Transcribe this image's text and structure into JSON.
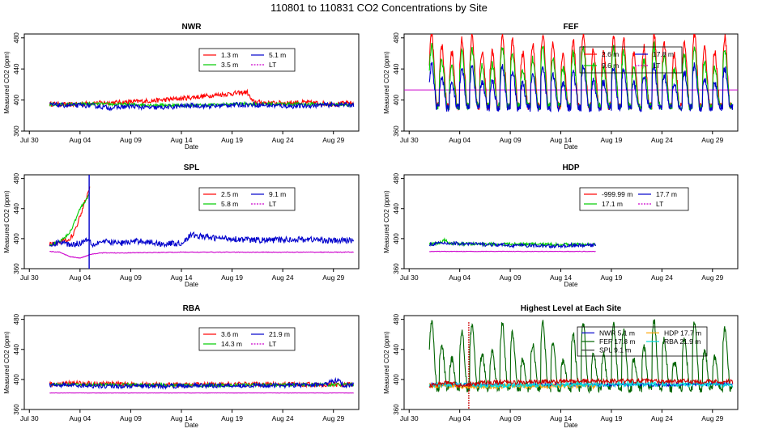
{
  "figure_title": "110801  to  110831 CO2 Concentrations by Site",
  "chart_data": [
    {
      "type": "line",
      "title": "NWR",
      "xlabel": "Date",
      "ylabel": "Measured CO2 (ppm)",
      "xlim": [
        -1.5,
        31.5
      ],
      "ylim": [
        360,
        485
      ],
      "x_ticks": [
        {
          "v": -1,
          "label": "Jul 30"
        },
        {
          "v": 4,
          "label": "Aug 04"
        },
        {
          "v": 9,
          "label": "Aug 09"
        },
        {
          "v": 14,
          "label": "Aug 14"
        },
        {
          "v": 19,
          "label": "Aug 19"
        },
        {
          "v": 24,
          "label": "Aug 24"
        },
        {
          "v": 29,
          "label": "Aug 29"
        }
      ],
      "y_ticks": [
        360,
        400,
        440,
        480
      ],
      "legend": [
        {
          "label": "1.3 m",
          "color": "#ff0000"
        },
        {
          "label": "5.1 m",
          "color": "#0000cc"
        },
        {
          "label": "3.5 m",
          "color": "#00cc00"
        },
        {
          "label": "LT",
          "color": "#cc00cc",
          "dashed": true
        }
      ],
      "series": [
        {
          "name": "1.3 m",
          "color": "#ff0000",
          "x": [
            1,
            3,
            5,
            8,
            11,
            14,
            17,
            20.5,
            21,
            23,
            26,
            29,
            31
          ],
          "y": [
            395,
            394,
            396,
            397,
            399,
            402,
            406,
            410,
            398,
            396,
            397,
            395,
            396
          ],
          "noise": 3
        },
        {
          "name": "3.5 m",
          "color": "#00cc00",
          "x": [
            1,
            5,
            10,
            15,
            20,
            25,
            31
          ],
          "y": [
            394,
            395,
            394,
            393,
            395,
            395,
            394
          ],
          "noise": 2
        },
        {
          "name": "5.1 m",
          "color": "#0000cc",
          "x": [
            1,
            3,
            5,
            7,
            9,
            11,
            13,
            15,
            17,
            19,
            21,
            23,
            25,
            27,
            29,
            31
          ],
          "y": [
            394,
            393,
            393,
            390,
            392,
            390,
            391,
            393,
            392,
            394,
            394,
            393,
            392,
            393,
            394,
            394
          ],
          "noise": 3
        }
      ]
    },
    {
      "type": "line",
      "title": "FEF",
      "xlabel": "Date",
      "ylabel": "Measured CO2 (ppm)",
      "xlim": [
        -1.5,
        31.5
      ],
      "ylim": [
        360,
        485
      ],
      "x_ticks": [
        {
          "v": -1,
          "label": "Jul 30"
        },
        {
          "v": 4,
          "label": "Aug 04"
        },
        {
          "v": 9,
          "label": "Aug 09"
        },
        {
          "v": 14,
          "label": "Aug 14"
        },
        {
          "v": 19,
          "label": "Aug 19"
        },
        {
          "v": 24,
          "label": "Aug 24"
        },
        {
          "v": 29,
          "label": "Aug 29"
        }
      ],
      "y_ticks": [
        360,
        400,
        440,
        480
      ],
      "legend": [
        {
          "label": "2.6 m",
          "color": "#ff0000"
        },
        {
          "label": "17.8 m",
          "color": "#0000cc"
        },
        {
          "label": "9.6 m",
          "color": "#00cc00"
        },
        {
          "label": "LT",
          "color": "#cc00cc",
          "dashed": true
        }
      ],
      "reference_line": {
        "value": 413,
        "color": "#cc00cc"
      },
      "series": [
        {
          "name": "2.6 m",
          "color": "#ff0000",
          "diurnal": true,
          "start": 1,
          "end": 31,
          "base": 392,
          "peak": [
            460,
            485
          ]
        },
        {
          "name": "9.6 m",
          "color": "#00cc00",
          "diurnal": true,
          "start": 1,
          "end": 31,
          "base": 392,
          "peak": [
            440,
            470
          ]
        },
        {
          "name": "17.8 m",
          "color": "#0000cc",
          "diurnal": true,
          "start": 1,
          "end": 31,
          "base": 390,
          "peak": [
            420,
            445
          ]
        }
      ]
    },
    {
      "type": "line",
      "title": "SPL",
      "xlabel": "Date",
      "ylabel": "Measured CO2 (ppm)",
      "xlim": [
        -1.5,
        31.5
      ],
      "ylim": [
        360,
        485
      ],
      "x_ticks": [
        {
          "v": -1,
          "label": "Jul 30"
        },
        {
          "v": 4,
          "label": "Aug 04"
        },
        {
          "v": 9,
          "label": "Aug 09"
        },
        {
          "v": 14,
          "label": "Aug 14"
        },
        {
          "v": 19,
          "label": "Aug 19"
        },
        {
          "v": 24,
          "label": "Aug 24"
        },
        {
          "v": 29,
          "label": "Aug 29"
        }
      ],
      "y_ticks": [
        360,
        400,
        440,
        480
      ],
      "legend": [
        {
          "label": "2.5 m",
          "color": "#ff0000"
        },
        {
          "label": "9.1 m",
          "color": "#0000cc"
        },
        {
          "label": "5.8 m",
          "color": "#00cc00"
        },
        {
          "label": "LT",
          "color": "#cc00cc",
          "dashed": true
        }
      ],
      "series": [
        {
          "name": "2.5 m",
          "color": "#ff0000",
          "x": [
            1,
            2,
            3,
            3.5,
            4,
            4.5,
            5
          ],
          "y": [
            392,
            395,
            400,
            410,
            430,
            450,
            470
          ],
          "noise": 3
        },
        {
          "name": "5.8 m",
          "color": "#00cc00",
          "x": [
            1,
            2,
            3,
            4,
            5
          ],
          "y": [
            392,
            396,
            408,
            440,
            460
          ],
          "noise": 2
        },
        {
          "name": "9.1 m",
          "color": "#0000cc",
          "x": [
            1,
            2,
            3,
            4,
            4.8,
            5.3,
            6,
            8,
            10,
            12,
            14,
            15,
            17,
            19,
            21,
            23,
            25,
            27,
            29,
            31
          ],
          "y": [
            390,
            396,
            392,
            394,
            400,
            392,
            396,
            394,
            397,
            393,
            394,
            405,
            401,
            400,
            398,
            398,
            399,
            399,
            397,
            398
          ],
          "noise": 4
        },
        {
          "name": "LT",
          "color": "#cc00cc",
          "x": [
            1,
            2,
            3,
            4,
            5,
            6,
            8,
            14,
            20,
            31
          ],
          "y": [
            383,
            382,
            376,
            374,
            379,
            381,
            381,
            382,
            382,
            382
          ],
          "noise": 0.4
        }
      ]
    },
    {
      "type": "line",
      "title": "HDP",
      "xlabel": "Date",
      "ylabel": "Measured CO2 (ppm)",
      "xlim": [
        -1.5,
        31.5
      ],
      "ylim": [
        360,
        485
      ],
      "x_ticks": [
        {
          "v": -1,
          "label": "Jul 30"
        },
        {
          "v": 4,
          "label": "Aug 04"
        },
        {
          "v": 9,
          "label": "Aug 09"
        },
        {
          "v": 14,
          "label": "Aug 14"
        },
        {
          "v": 19,
          "label": "Aug 19"
        },
        {
          "v": 24,
          "label": "Aug 24"
        },
        {
          "v": 29,
          "label": "Aug 29"
        }
      ],
      "y_ticks": [
        360,
        400,
        440,
        480
      ],
      "legend": [
        {
          "label": "-999.99 m",
          "color": "#ff0000"
        },
        {
          "label": "17.7 m",
          "color": "#0000cc"
        },
        {
          "label": "17.1 m",
          "color": "#00cc00"
        },
        {
          "label": "LT",
          "color": "#cc00cc",
          "dashed": true
        }
      ],
      "series": [
        {
          "name": "17.1 m",
          "color": "#00cc00",
          "x": [
            1,
            2,
            2.5,
            3,
            4,
            17.5
          ],
          "y": [
            393,
            394,
            398,
            394,
            393,
            392
          ],
          "noise": 2
        },
        {
          "name": "17.7 m",
          "color": "#0000cc",
          "x": [
            1,
            3,
            5,
            7,
            9,
            11,
            13,
            15,
            17.5
          ],
          "y": [
            393,
            394,
            393,
            392,
            391,
            391,
            390,
            391,
            391
          ],
          "noise": 2.5
        },
        {
          "name": "LT",
          "color": "#cc00cc",
          "x": [
            1,
            9,
            17.5
          ],
          "y": [
            383,
            383,
            383
          ],
          "noise": 0.3
        }
      ]
    },
    {
      "type": "line",
      "title": "RBA",
      "xlabel": "Date",
      "ylabel": "Measured CO2 (ppm)",
      "xlim": [
        -1.5,
        31.5
      ],
      "ylim": [
        360,
        485
      ],
      "x_ticks": [
        {
          "v": -1,
          "label": "Jul 30"
        },
        {
          "v": 4,
          "label": "Aug 04"
        },
        {
          "v": 9,
          "label": "Aug 09"
        },
        {
          "v": 14,
          "label": "Aug 14"
        },
        {
          "v": 19,
          "label": "Aug 19"
        },
        {
          "v": 24,
          "label": "Aug 24"
        },
        {
          "v": 29,
          "label": "Aug 29"
        }
      ],
      "y_ticks": [
        360,
        400,
        440,
        480
      ],
      "legend": [
        {
          "label": "3.6 m",
          "color": "#ff0000"
        },
        {
          "label": "21.9 m",
          "color": "#0000cc"
        },
        {
          "label": "14.3 m",
          "color": "#00cc00"
        },
        {
          "label": "LT",
          "color": "#cc00cc",
          "dashed": true
        }
      ],
      "series": [
        {
          "name": "3.6 m",
          "color": "#ff0000",
          "x": [
            1,
            4,
            8,
            12,
            16,
            20,
            24,
            28,
            31
          ],
          "y": [
            394,
            395,
            394,
            393,
            393,
            394,
            394,
            393,
            393
          ],
          "noise": 3
        },
        {
          "name": "14.3 m",
          "color": "#00cc00",
          "x": [
            1,
            8,
            16,
            24,
            31
          ],
          "y": [
            393,
            393,
            392,
            393,
            393
          ],
          "noise": 2
        },
        {
          "name": "21.9 m",
          "color": "#0000cc",
          "x": [
            1,
            4,
            8,
            12,
            16,
            20,
            24,
            28,
            29.5,
            30,
            31
          ],
          "y": [
            393,
            392,
            391,
            391,
            392,
            392,
            392,
            393,
            400,
            392,
            393
          ],
          "noise": 3
        },
        {
          "name": "LT",
          "color": "#cc00cc",
          "x": [
            1,
            31
          ],
          "y": [
            382,
            382
          ],
          "noise": 0.2
        }
      ]
    },
    {
      "type": "line",
      "title": "Highest Level at Each Site",
      "xlabel": "Date",
      "ylabel": "Measured CO2 (ppm)",
      "xlim": [
        -1.5,
        31.5
      ],
      "ylim": [
        360,
        485
      ],
      "x_ticks": [
        {
          "v": -1,
          "label": "Jul 30"
        },
        {
          "v": 4,
          "label": "Aug 04"
        },
        {
          "v": 9,
          "label": "Aug 09"
        },
        {
          "v": 14,
          "label": "Aug 14"
        },
        {
          "v": 19,
          "label": "Aug 19"
        },
        {
          "v": 24,
          "label": "Aug 24"
        },
        {
          "v": 29,
          "label": "Aug 29"
        }
      ],
      "y_ticks": [
        360,
        400,
        440,
        480
      ],
      "legend": [
        {
          "label": "NWR  5.1 m",
          "color": "#0000cc"
        },
        {
          "label": "HDP  17.7 m",
          "color": "#ffa500"
        },
        {
          "label": "FEF  17.8 m",
          "color": "#006400"
        },
        {
          "label": "RBA  21.9 m",
          "color": "#00dddd"
        },
        {
          "label": "SPL  9.1 m",
          "color": "#333333"
        }
      ],
      "series": [
        {
          "name": "FEF 17.8 m",
          "color": "#006400",
          "diurnal": true,
          "start": 1,
          "end": 31,
          "base": 388,
          "peak": [
            425,
            478
          ]
        },
        {
          "name": "NWR 5.1 m",
          "color": "#0000cc",
          "x": [
            1,
            8,
            16,
            24,
            31
          ],
          "y": [
            393,
            392,
            393,
            393,
            394
          ],
          "noise": 2
        },
        {
          "name": "HDP 17.7 m",
          "color": "#ffa500",
          "x": [
            1,
            5,
            10,
            17.5
          ],
          "y": [
            392,
            390,
            391,
            391
          ],
          "noise": 3
        },
        {
          "name": "RBA 21.9 m",
          "color": "#00dddd",
          "x": [
            1,
            8,
            16,
            24,
            31
          ],
          "y": [
            393,
            392,
            393,
            394,
            393
          ],
          "noise": 3
        },
        {
          "name": "SPL 9.1 m",
          "color": "#cc0000",
          "x": [
            1,
            3,
            4,
            5,
            6,
            10,
            16,
            22,
            31
          ],
          "y": [
            392,
            396,
            392,
            394,
            396,
            396,
            398,
            398,
            397
          ],
          "noise": 3
        }
      ]
    }
  ]
}
